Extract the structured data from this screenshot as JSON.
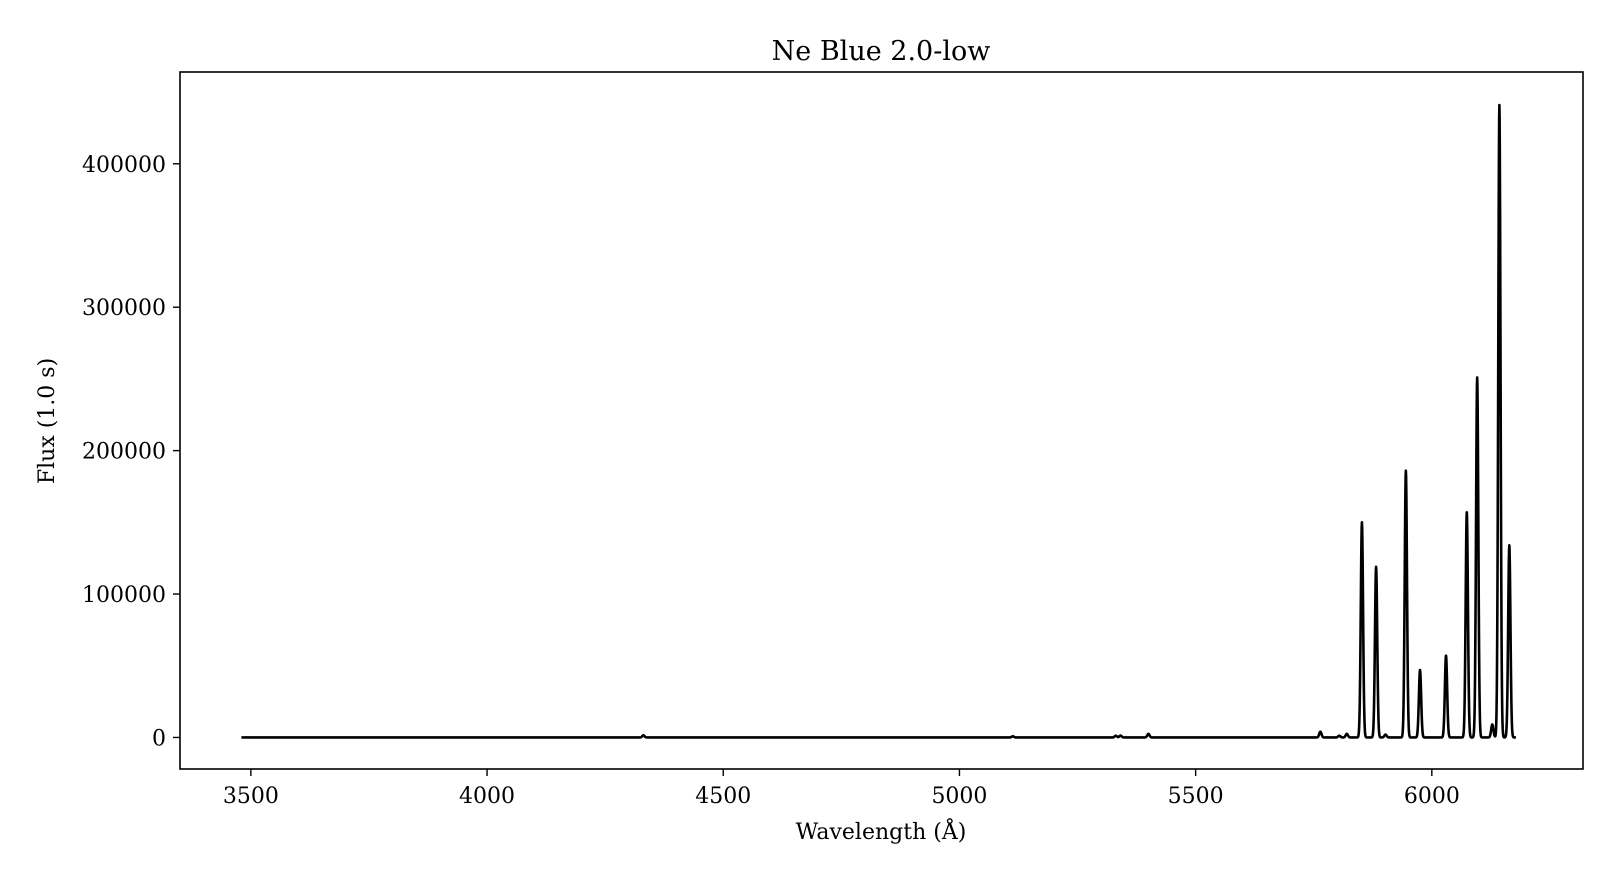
{
  "chart_data": {
    "type": "line",
    "title": "Ne Blue 2.0-low",
    "xlabel": "Wavelength (Å)",
    "ylabel": "Flux (1.0 s)",
    "xlim": [
      3350,
      6320
    ],
    "ylim": [
      -22000,
      464000
    ],
    "xticks": [
      3500,
      4000,
      4500,
      5000,
      5500,
      6000
    ],
    "yticks": [
      0,
      100000,
      200000,
      300000,
      400000
    ],
    "grid": false,
    "legend": "none",
    "line_color": "#000000",
    "x_range": [
      3480,
      6178
    ],
    "baseline": 0,
    "series": [
      {
        "line_width_px_note": null,
        "peaks": [
          {
            "x": 4331,
            "y": 1500
          },
          {
            "x": 5113,
            "y": 800
          },
          {
            "x": 5331,
            "y": 1200
          },
          {
            "x": 5341,
            "y": 1300
          },
          {
            "x": 5400,
            "y": 2500
          },
          {
            "x": 5764,
            "y": 4000
          },
          {
            "x": 5804,
            "y": 1200
          },
          {
            "x": 5820,
            "y": 2500
          },
          {
            "x": 5852,
            "y": 150000
          },
          {
            "x": 5882,
            "y": 119000
          },
          {
            "x": 5902,
            "y": 2000
          },
          {
            "x": 5945,
            "y": 186000
          },
          {
            "x": 5975,
            "y": 47000
          },
          {
            "x": 6030,
            "y": 57000
          },
          {
            "x": 6074,
            "y": 157000
          },
          {
            "x": 6096,
            "y": 251000
          },
          {
            "x": 6128,
            "y": 9000
          },
          {
            "x": 6143,
            "y": 441000
          },
          {
            "x": 6164,
            "y": 134000
          }
        ]
      }
    ]
  }
}
